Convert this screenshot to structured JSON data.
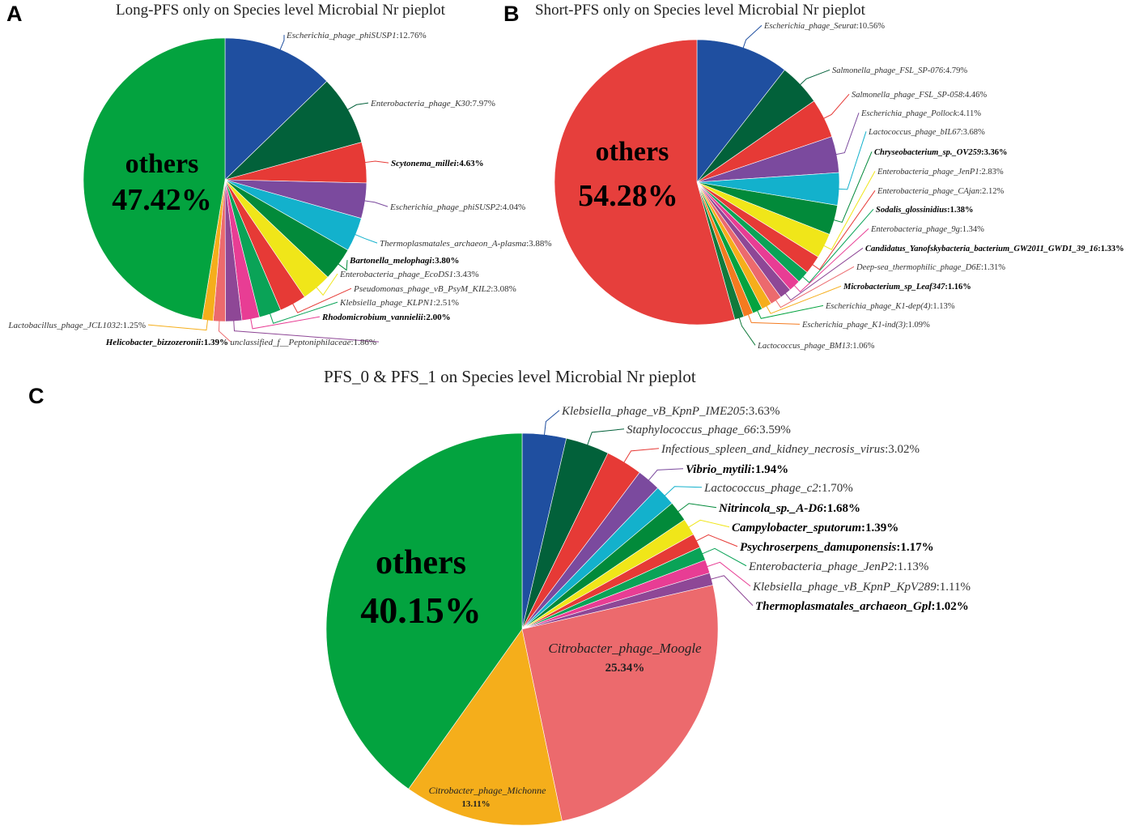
{
  "panel_letters": [
    "A",
    "B",
    "C"
  ],
  "chart_data": [
    {
      "type": "pie",
      "title": "Long-PFS only on Species level Microbial Nr pieplot",
      "slices": [
        {
          "label": "Escherichia_phage_phiSUSP1",
          "value": 12.76,
          "display": "12.76%",
          "color": "#1f4fa0",
          "bold": false
        },
        {
          "label": "Enterobacteria_phage_K30",
          "value": 7.97,
          "display": "7.97%",
          "color": "#02613a",
          "bold": false
        },
        {
          "label": "Scytonema_millei",
          "value": 4.63,
          "display": "4.63%",
          "color": "#e63a36",
          "bold": true
        },
        {
          "label": "Escherichia_phage_phiSUSP2",
          "value": 4.04,
          "display": "4.04%",
          "color": "#7b4a9e",
          "bold": false
        },
        {
          "label": "Thermoplasmatales_archaeon_A-plasma",
          "value": 3.88,
          "display": "3.88%",
          "color": "#13b1cc",
          "bold": false
        },
        {
          "label": "Bartonella_melophagi",
          "value": 3.8,
          "display": "3.80%",
          "color": "#028a3a",
          "bold": true
        },
        {
          "label": "Enterobacteria_phage_EcoDS1",
          "value": 3.43,
          "display": "3.43%",
          "color": "#f0e619",
          "bold": false
        },
        {
          "label": "Pseudomonas_phage_vB_PsyM_KIL2",
          "value": 3.08,
          "display": "3.08%",
          "color": "#e63a36",
          "bold": false
        },
        {
          "label": "Klebsiella_phage_KLPN1",
          "value": 2.51,
          "display": "2.51%",
          "color": "#0aa357",
          "bold": false
        },
        {
          "label": "Rhodomicrobium_vannielii",
          "value": 2.0,
          "display": "2.00%",
          "color": "#e83d94",
          "bold": true
        },
        {
          "label": "unclassified_f__Peptoniphilaceae",
          "value": 1.86,
          "display": "1.86%",
          "color": "#8e4796",
          "bold": false
        },
        {
          "label": "Helicobacter_bizzozeronii",
          "value": 1.39,
          "display": "1.39%",
          "color": "#ec6a6d",
          "bold": true
        },
        {
          "label": "Lactobacillus_phage_JCL1032",
          "value": 1.25,
          "display": "1.25%",
          "color": "#f5ae1b",
          "bold": false
        },
        {
          "label": "others",
          "value": 47.42,
          "display": "47.42%",
          "color": "#03a33f",
          "bold": true
        }
      ],
      "others_label": "others",
      "others_value": "47.42%"
    },
    {
      "type": "pie",
      "title": "Short-PFS only on Species level Microbial Nr pieplot",
      "slices": [
        {
          "label": "Escherichia_phage_Seurat",
          "value": 10.56,
          "display": "10.56%",
          "color": "#1f4fa0",
          "bold": false
        },
        {
          "label": "Salmonella_phage_FSL_SP-076",
          "value": 4.79,
          "display": "4.79%",
          "color": "#02613a",
          "bold": false
        },
        {
          "label": "Salmonella_phage_FSL_SP-058",
          "value": 4.46,
          "display": "4.46%",
          "color": "#e63a36",
          "bold": false
        },
        {
          "label": "Escherichia_phage_Pollock",
          "value": 4.11,
          "display": "4.11%",
          "color": "#7b4a9e",
          "bold": false
        },
        {
          "label": "Lactococcus_phage_bIL67",
          "value": 3.68,
          "display": "3.68%",
          "color": "#13b1cc",
          "bold": false
        },
        {
          "label": "Chryseobacterium_sp._OV259",
          "value": 3.36,
          "display": "3.36%",
          "color": "#028a3a",
          "bold": true
        },
        {
          "label": "Enterobacteria_phage_JenP1",
          "value": 2.83,
          "display": "2.83%",
          "color": "#f0e619",
          "bold": false
        },
        {
          "label": "Enterobacteria_phage_CAjan",
          "value": 2.12,
          "display": "2.12%",
          "color": "#e63a36",
          "bold": false
        },
        {
          "label": "Sodalis_glossinidius",
          "value": 1.38,
          "display": "1.38%",
          "color": "#0aa357",
          "bold": true
        },
        {
          "label": "Enterobacteria_phage_9g",
          "value": 1.34,
          "display": "1.34%",
          "color": "#e83d94",
          "bold": false
        },
        {
          "label": "Candidatus_Yanofskybacteria_bacterium_GW2011_GWD1_39_16",
          "value": 1.33,
          "display": "1.33%",
          "color": "#8e4796",
          "bold": true
        },
        {
          "label": "Deep-sea_thermophilic_phage_D6E",
          "value": 1.31,
          "display": "1.31%",
          "color": "#ec6a6d",
          "bold": false
        },
        {
          "label": "Microbacterium_sp_Leaf347",
          "value": 1.16,
          "display": "1.16%",
          "color": "#f5ae1b",
          "bold": true
        },
        {
          "label": "Escherichia_phage_K1-dep(4)",
          "value": 1.13,
          "display": "1.13%",
          "color": "#03a33f",
          "bold": false
        },
        {
          "label": "Escherichia_phage_K1-ind(3)",
          "value": 1.09,
          "display": "1.09%",
          "color": "#f47b20",
          "bold": false
        },
        {
          "label": "Lactococcus_phage_BM13",
          "value": 1.06,
          "display": "1.06%",
          "color": "#117a3c",
          "bold": false
        },
        {
          "label": "others",
          "value": 54.28,
          "display": "54.28%",
          "color": "#e63f3c",
          "bold": true
        }
      ],
      "others_label": "others",
      "others_value": "54.28%"
    },
    {
      "type": "pie",
      "title": "PFS_0 & PFS_1 on Species level Microbial Nr pieplot",
      "slices": [
        {
          "label": "Klebsiella_phage_vB_KpnP_IME205",
          "value": 3.63,
          "display": "3.63%",
          "color": "#1f4fa0",
          "bold": false
        },
        {
          "label": "Staphylococcus_phage_66",
          "value": 3.59,
          "display": "3.59%",
          "color": "#02613a",
          "bold": false
        },
        {
          "label": "Infectious_spleen_and_kidney_necrosis_virus",
          "value": 3.02,
          "display": "3.02%",
          "color": "#e63a36",
          "bold": false
        },
        {
          "label": "Vibrio_mytili",
          "value": 1.94,
          "display": "1.94%",
          "color": "#7b4a9e",
          "bold": true
        },
        {
          "label": "Lactococcus_phage_c2",
          "value": 1.7,
          "display": "1.70%",
          "color": "#13b1cc",
          "bold": false
        },
        {
          "label": "Nitrincola_sp._A-D6",
          "value": 1.68,
          "display": "1.68%",
          "color": "#028a3a",
          "bold": true
        },
        {
          "label": "Campylobacter_sputorum",
          "value": 1.39,
          "display": "1.39%",
          "color": "#f0e619",
          "bold": true
        },
        {
          "label": "Psychroserpens_damuponensis",
          "value": 1.17,
          "display": "1.17%",
          "color": "#e63a36",
          "bold": true
        },
        {
          "label": "Enterobacteria_phage_JenP2",
          "value": 1.13,
          "display": "1.13%",
          "color": "#0aa357",
          "bold": false
        },
        {
          "label": "Klebsiella_phage_vB_KpnP_KpV289",
          "value": 1.11,
          "display": "1.11%",
          "color": "#e83d94",
          "bold": false
        },
        {
          "label": "Thermoplasmatales_archaeon_Gpl",
          "value": 1.02,
          "display": "1.02%",
          "color": "#8e4796",
          "bold": true
        },
        {
          "label": "Citrobacter_phage_Moogle",
          "value": 25.34,
          "display": "25.34%",
          "color": "#ec6a6d",
          "bold": false
        },
        {
          "label": "Citrobacter_phage_Michonne",
          "value": 13.11,
          "display": "13.11%",
          "color": "#f5ae1b",
          "bold": false
        },
        {
          "label": "others",
          "value": 40.15,
          "display": "40.15%",
          "color": "#03a33f",
          "bold": true
        }
      ],
      "others_label": "others",
      "others_value": "40.15%"
    }
  ]
}
